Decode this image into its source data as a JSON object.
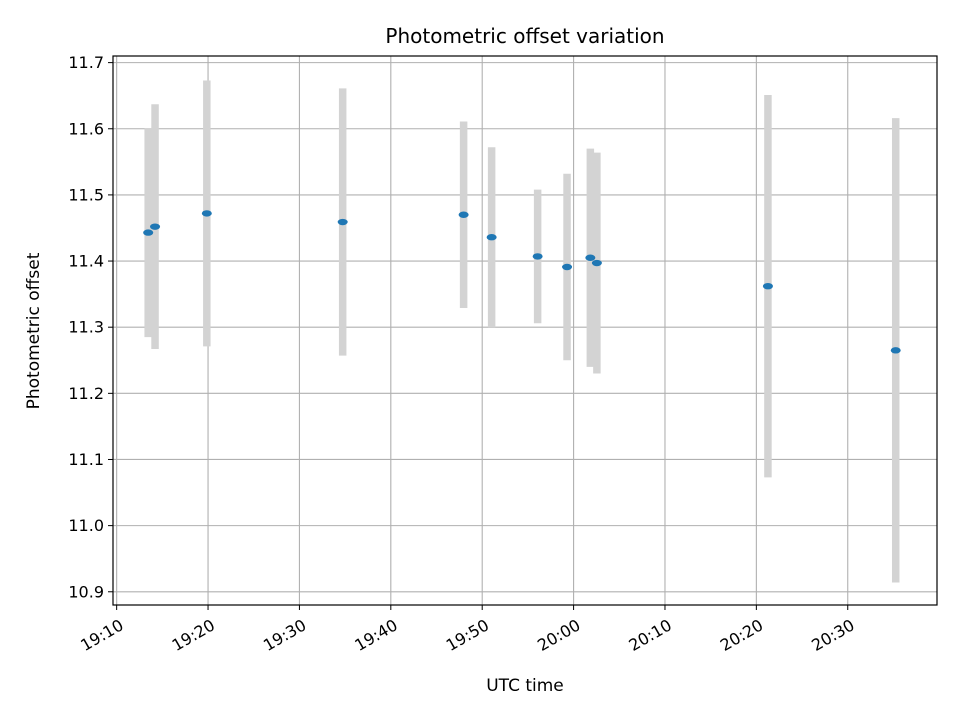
{
  "chart_data": {
    "type": "scatter",
    "title": "Photometric offset variation",
    "xlabel": "UTC time",
    "ylabel": "Photometric offset",
    "x_tick_labels": [
      "19:10",
      "19:20",
      "19:30",
      "19:40",
      "19:50",
      "20:00",
      "20:10",
      "20:20",
      "20:30"
    ],
    "y_tick_labels": [
      "10.9",
      "11.0",
      "11.1",
      "11.2",
      "11.3",
      "11.4",
      "11.5",
      "11.6",
      "11.7"
    ],
    "xlim": [
      "19:09:36",
      "20:39:46"
    ],
    "ylim": [
      10.88,
      11.71
    ],
    "grid": true,
    "series": [
      {
        "marker_color": "#1f77b4",
        "errorbar_color": "#d3d3d3",
        "points": [
          {
            "x": "19:13:27",
            "y": 11.443,
            "yerr": 0.158
          },
          {
            "x": "19:14:12",
            "y": 11.452,
            "yerr": 0.185
          },
          {
            "x": "19:19:52",
            "y": 11.472,
            "yerr": 0.201
          },
          {
            "x": "19:34:44",
            "y": 11.459,
            "yerr": 0.202
          },
          {
            "x": "19:47:58",
            "y": 11.47,
            "yerr": 0.141
          },
          {
            "x": "19:51:02",
            "y": 11.436,
            "yerr": 0.136
          },
          {
            "x": "19:56:04",
            "y": 11.407,
            "yerr": 0.101
          },
          {
            "x": "19:59:17",
            "y": 11.391,
            "yerr": 0.141
          },
          {
            "x": "20:01:50",
            "y": 11.405,
            "yerr": 0.165
          },
          {
            "x": "20:02:33",
            "y": 11.397,
            "yerr": 0.167
          },
          {
            "x": "20:21:16",
            "y": 11.362,
            "yerr": 0.289
          },
          {
            "x": "20:35:15",
            "y": 11.265,
            "yerr": 0.351
          }
        ]
      }
    ]
  }
}
